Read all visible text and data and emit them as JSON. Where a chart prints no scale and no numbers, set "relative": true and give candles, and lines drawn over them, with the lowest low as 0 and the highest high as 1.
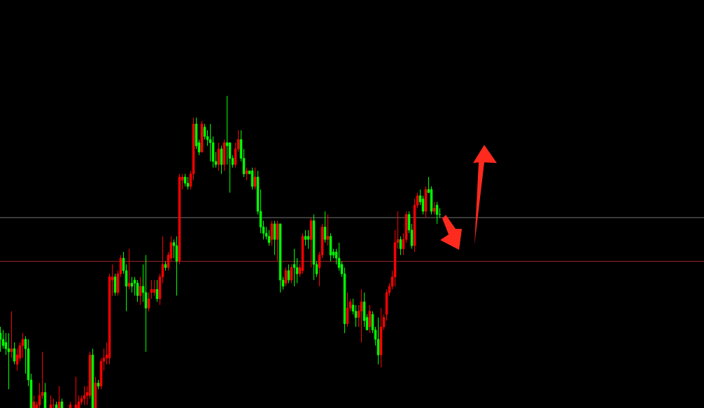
{
  "chart_data": {
    "type": "candlestick",
    "relative": true,
    "categories": [
      null,
      null,
      null,
      null,
      null,
      null,
      null,
      null,
      null,
      null,
      null,
      null,
      null,
      null,
      null,
      null,
      null,
      null,
      null,
      null,
      null,
      null,
      null,
      null,
      null,
      null,
      null,
      null,
      null,
      null,
      null,
      null,
      null,
      null,
      null,
      null,
      null,
      null,
      null,
      null,
      null,
      null,
      null,
      null,
      null,
      null,
      null,
      null,
      null,
      null,
      null,
      null,
      null,
      null,
      null,
      null,
      null,
      null,
      null,
      null,
      null,
      null,
      null,
      null,
      null,
      null,
      null,
      null,
      null,
      null,
      null,
      null,
      null,
      null,
      null,
      null,
      null,
      null,
      null,
      null,
      null,
      null,
      null,
      null,
      null,
      null,
      null,
      null,
      null,
      null,
      null,
      null,
      null,
      null,
      null,
      null,
      null,
      null,
      null,
      null,
      null,
      null,
      null,
      null,
      null,
      null,
      null,
      null,
      null,
      null,
      null,
      null,
      null,
      null,
      null,
      null,
      null,
      null,
      null,
      null,
      null,
      null,
      null,
      null,
      null,
      null,
      null,
      null,
      null,
      null,
      null,
      null,
      null,
      null,
      null,
      null,
      null,
      null,
      null,
      null,
      null,
      null,
      null,
      null,
      null,
      null,
      null,
      null,
      null,
      null,
      null,
      null,
      null,
      null,
      null,
      null,
      null,
      null
    ],
    "ohlc": [
      [
        0.24,
        0.26,
        0.18,
        0.22
      ],
      [
        0.22,
        0.25,
        0.19,
        0.2
      ],
      [
        0.21,
        0.24,
        0.17,
        0.19
      ],
      [
        0.19,
        0.24,
        0.06,
        0.18
      ],
      [
        0.18,
        0.31,
        0.16,
        0.19
      ],
      [
        0.19,
        0.21,
        0.14,
        0.15
      ],
      [
        0.14,
        0.19,
        0.12,
        0.17
      ],
      [
        0.16,
        0.21,
        0.15,
        0.2
      ],
      [
        0.2,
        0.24,
        0.16,
        0.22
      ],
      [
        0.22,
        0.23,
        0.11,
        0.19
      ],
      [
        0.19,
        0.22,
        0.07,
        0.09
      ],
      [
        0.09,
        0.11,
        0,
        0
      ],
      [
        0,
        0.04,
        0,
        0.02
      ],
      [
        0,
        0.02,
        0,
        0.01
      ],
      [
        0.01,
        0.08,
        0,
        0.04
      ],
      [
        0.04,
        0.18,
        0.03,
        0.05
      ],
      [
        0.05,
        0.08,
        0,
        0
      ],
      null,
      [
        0,
        0.04,
        0,
        0.01
      ],
      [
        0.01,
        0.03,
        0,
        0.01
      ],
      [
        0.01,
        0.02,
        0,
        0
      ],
      [
        0,
        0.07,
        0,
        0.02
      ],
      [
        0.02,
        0.03,
        0,
        0
      ],
      null,
      null,
      [
        0,
        0.02,
        0,
        0.01
      ],
      null,
      [
        0,
        0.1,
        0,
        0.01
      ],
      [
        0,
        0.04,
        0,
        0.02
      ],
      [
        0.02,
        0.04,
        0.01,
        0.03
      ],
      [
        0.03,
        0.07,
        0.01,
        0.04
      ],
      [
        0.04,
        0.07,
        0.01,
        0.05
      ],
      [
        0.04,
        0.18,
        0.03,
        0.17
      ],
      [
        0.17,
        0.19,
        0,
        0
      ],
      [
        0,
        0.1,
        0,
        0.08
      ],
      [
        0.08,
        0.09,
        0.06,
        0.07
      ],
      [
        0.07,
        0.16,
        0.06,
        0.15
      ],
      [
        0.15,
        0.19,
        0.12,
        0.16
      ],
      [
        0.16,
        0.21,
        0.14,
        0.17
      ],
      [
        0.16,
        0.43,
        0.14,
        0.42
      ],
      [
        0.41,
        0.46,
        0.36,
        0.42
      ],
      [
        0.42,
        0.43,
        0.36,
        0.37
      ],
      [
        0.37,
        0.44,
        0.36,
        0.43
      ],
      [
        0.43,
        0.49,
        0.42,
        0.48
      ],
      [
        0.48,
        0.5,
        0.43,
        0.44
      ],
      [
        0.44,
        0.46,
        0.31,
        0.39
      ],
      [
        0.39,
        0.51,
        0.38,
        0.4
      ],
      [
        0.4,
        0.42,
        0.37,
        0.39
      ],
      [
        0.41,
        0.42,
        0.36,
        0.4
      ],
      [
        0.4,
        0.41,
        0.34,
        0.36
      ],
      [
        0.36,
        0.42,
        0.33,
        0.39
      ],
      [
        0.39,
        0.46,
        0.34,
        0.37
      ],
      [
        0.37,
        0.49,
        0.18,
        0.32
      ],
      [
        0.32,
        0.37,
        0.31,
        0.35
      ],
      [
        0.37,
        0.41,
        0.35,
        0.38
      ],
      [
        0.37,
        0.41,
        0.36,
        0.38
      ],
      [
        0.38,
        0.41,
        0.34,
        0.35
      ],
      [
        0.35,
        0.43,
        0.33,
        0.42
      ],
      [
        0.42,
        0.55,
        0.4,
        0.46
      ],
      [
        0.46,
        0.47,
        0.44,
        0.45
      ],
      [
        0.45,
        0.5,
        0.44,
        0.49
      ],
      [
        0.48,
        0.55,
        0.47,
        0.53
      ],
      [
        0.53,
        0.54,
        0.48,
        0.52
      ],
      [
        0.52,
        0.55,
        0.36,
        0.47
      ],
      [
        0.47,
        0.75,
        0.46,
        0.74
      ],
      [
        0.73,
        0.75,
        0.7,
        0.74
      ],
      [
        0.74,
        0.75,
        0.71,
        0.72
      ],
      [
        0.72,
        0.74,
        0.7,
        0.71
      ],
      [
        0.71,
        0.76,
        0.7,
        0.75
      ],
      [
        0.75,
        0.93,
        0.73,
        0.91
      ],
      [
        0.91,
        0.93,
        0.83,
        0.84
      ],
      [
        0.85,
        0.86,
        0.81,
        0.82
      ],
      [
        0.82,
        0.92,
        0.82,
        0.91
      ],
      [
        0.9,
        0.91,
        0.86,
        0.87
      ],
      [
        0.87,
        0.89,
        0.84,
        0.86
      ],
      [
        0.86,
        0.91,
        0.79,
        0.85
      ],
      [
        0.85,
        0.87,
        0.77,
        0.79
      ],
      [
        0.79,
        0.82,
        0.77,
        0.78
      ],
      [
        0.78,
        0.85,
        0.76,
        0.83
      ],
      [
        0.83,
        0.84,
        0.75,
        0.78
      ],
      [
        0.78,
        0.86,
        0.76,
        0.85
      ],
      [
        0.85,
        1,
        0.78,
        0.84
      ],
      [
        0.85,
        0.85,
        0.69,
        0.8
      ],
      [
        0.8,
        0.81,
        0.77,
        0.78
      ],
      [
        0.78,
        0.85,
        0.77,
        0.83
      ],
      [
        0.83,
        0.89,
        0.82,
        0.86
      ],
      [
        0.86,
        0.89,
        0.79,
        0.8
      ],
      [
        0.8,
        0.83,
        0.74,
        0.75
      ],
      [
        0.75,
        0.77,
        0.73,
        0.76
      ],
      [
        0.76,
        0.76,
        0.75,
        0.75
      ],
      [
        0.76,
        0.77,
        0.7,
        0.71
      ],
      [
        0.71,
        0.77,
        0.7,
        0.74
      ],
      [
        0.74,
        0.76,
        0.62,
        0.63
      ],
      [
        0.63,
        0.7,
        0.56,
        0.58
      ],
      [
        0.58,
        0.6,
        0.54,
        0.56
      ],
      [
        0.56,
        0.58,
        0.54,
        0.55
      ],
      [
        0.55,
        0.57,
        0.52,
        0.53
      ],
      [
        0.54,
        0.6,
        0.52,
        0.59
      ],
      [
        0.59,
        0.6,
        0.49,
        0.54
      ],
      [
        0.54,
        0.6,
        0.47,
        0.59
      ],
      [
        0.59,
        0.59,
        0.37,
        0.41
      ],
      [
        0.41,
        0.42,
        0.38,
        0.39
      ],
      [
        0.4,
        0.45,
        0.39,
        0.44
      ],
      [
        0.44,
        0.46,
        0.4,
        0.41
      ],
      [
        0.41,
        0.46,
        0.4,
        0.45
      ],
      [
        0.46,
        0.51,
        0.39,
        0.45
      ],
      [
        0.45,
        0.48,
        0.4,
        0.43
      ],
      [
        0.43,
        0.46,
        0.42,
        0.45
      ],
      [
        0.44,
        0.56,
        0.43,
        0.55
      ],
      [
        0.55,
        0.57,
        0.52,
        0.54
      ],
      [
        0.55,
        0.57,
        0.51,
        0.54
      ],
      [
        0.54,
        0.61,
        0.45,
        0.6
      ],
      [
        0.6,
        0.62,
        0.41,
        0.46
      ],
      [
        0.46,
        0.47,
        0.42,
        0.43
      ],
      [
        0.45,
        0.5,
        0.39,
        0.49
      ],
      [
        0.49,
        0.59,
        0.48,
        0.58
      ],
      [
        0.58,
        0.63,
        0.53,
        0.54
      ],
      [
        0.54,
        0.62,
        0.52,
        0.55
      ],
      [
        0.55,
        0.56,
        0.47,
        0.49
      ],
      [
        0.5,
        0.51,
        0.48,
        0.49
      ],
      [
        0.5,
        0.51,
        0.46,
        0.48
      ],
      [
        0.48,
        0.53,
        0.44,
        0.45
      ],
      [
        0.46,
        0.47,
        0.42,
        0.43
      ],
      [
        0.43,
        0.45,
        0.24,
        0.27
      ],
      [
        0.27,
        0.37,
        0.26,
        0.32
      ],
      [
        0.32,
        0.35,
        0.31,
        0.34
      ],
      [
        0.33,
        0.35,
        0.3,
        0.31
      ],
      [
        0.31,
        0.33,
        0.26,
        0.29
      ],
      [
        0.29,
        0.33,
        0.26,
        0.31
      ],
      [
        0.31,
        0.38,
        0.21,
        0.34
      ],
      [
        0.34,
        0.37,
        0.26,
        0.28
      ],
      [
        0.29,
        0.3,
        0.25,
        0.25
      ],
      [
        0.26,
        0.33,
        0.24,
        0.31
      ],
      [
        0.3,
        0.31,
        0.24,
        0.25
      ],
      [
        0.25,
        0.26,
        0.2,
        0.22
      ],
      [
        0.22,
        0.29,
        0.14,
        0.17
      ],
      [
        0.17,
        0.32,
        0.13,
        0.26
      ],
      [
        0.26,
        0.3,
        0.25,
        0.29
      ],
      [
        0.3,
        0.38,
        0.28,
        0.37
      ],
      [
        0.37,
        0.4,
        0.36,
        0.39
      ],
      [
        0.39,
        0.44,
        0.38,
        0.42
      ],
      [
        0.42,
        0.57,
        0.39,
        0.53
      ],
      [
        0.53,
        0.63,
        0.51,
        0.54
      ],
      [
        0.54,
        0.55,
        0.49,
        0.51
      ],
      [
        0.51,
        0.56,
        0.49,
        0.54
      ],
      [
        0.54,
        0.63,
        0.53,
        0.62
      ],
      [
        0.62,
        0.63,
        0.56,
        0.57
      ],
      [
        0.57,
        0.59,
        0.51,
        0.52
      ],
      [
        0.52,
        0.67,
        0.5,
        0.65
      ],
      [
        0.65,
        0.69,
        0.64,
        0.68
      ],
      [
        0.68,
        0.7,
        0.65,
        0.66
      ],
      [
        0.67,
        0.68,
        0.62,
        0.63
      ],
      [
        0.63,
        0.71,
        0.61,
        0.7
      ],
      [
        0.7,
        0.74,
        0.69,
        0.69
      ],
      [
        0.7,
        0.71,
        0.62,
        0.63
      ],
      [
        0.63,
        0.66,
        0.62,
        0.64
      ],
      [
        0.65,
        0.66,
        0.59,
        0.62
      ],
      [
        0.62,
        0.64,
        0.61,
        0.62
      ]
    ],
    "colors": [
      "#00ff00",
      "#00ff00",
      "#00ff00",
      "#00ff00",
      "#ff0000",
      "#00ff00",
      "#ff0000",
      "#ff0000",
      "#ff0000",
      "#00ff00",
      "#00ff00",
      "#00ff00",
      "#ff0000",
      "#ff0000",
      "#ff0000",
      "#ff0000",
      "#00ff00",
      null,
      "#ff0000",
      "#ff0000",
      "#00ff00",
      "#ff0000",
      "#00ff00",
      null,
      null,
      "#ff0000",
      null,
      "#ff0000",
      "#ff0000",
      "#ff0000",
      "#ff0000",
      "#ff0000",
      "#ff0000",
      "#00ff00",
      "#ff0000",
      "#00ff00",
      "#ff0000",
      "#ff0000",
      "#ff0000",
      "#ff0000",
      "#ff0000",
      "#00ff00",
      "#ff0000",
      "#ff0000",
      "#00ff00",
      "#00ff00",
      "#ff0000",
      "#00ff00",
      "#00ff00",
      "#00ff00",
      "#ff0000",
      "#00ff00",
      "#00ff00",
      "#ff0000",
      "#ff0000",
      "#ff0000",
      "#00ff00",
      "#ff0000",
      "#ff0000",
      "#00ff00",
      "#ff0000",
      "#ff0000",
      "#00ff00",
      "#00ff00",
      "#ff0000",
      "#ff0000",
      "#00ff00",
      "#00ff00",
      "#ff0000",
      "#ff0000",
      "#00ff00",
      "#00ff00",
      "#ff0000",
      "#00ff00",
      "#00ff00",
      "#00ff00",
      "#00ff00",
      "#00ff00",
      "#ff0000",
      "#00ff00",
      "#ff0000",
      "#00ff00",
      "#00ff00",
      "#00ff00",
      "#ff0000",
      "#ff0000",
      "#00ff00",
      "#00ff00",
      "#ff0000",
      "#00ff00",
      "#00ff00",
      "#ff0000",
      "#00ff00",
      "#00ff00",
      "#00ff00",
      "#00ff00",
      "#00ff00",
      "#ff0000",
      "#00ff00",
      "#ff0000",
      "#00ff00",
      "#00ff00",
      "#ff0000",
      "#00ff00",
      "#ff0000",
      "#00ff00",
      "#00ff00",
      "#ff0000",
      "#ff0000",
      "#00ff00",
      "#00ff00",
      "#ff0000",
      "#00ff00",
      "#00ff00",
      "#ff0000",
      "#ff0000",
      "#00ff00",
      "#ff0000",
      "#00ff00",
      "#00ff00",
      "#00ff00",
      "#00ff00",
      "#00ff00",
      "#00ff00",
      "#ff0000",
      "#ff0000",
      "#00ff00",
      "#00ff00",
      "#ff0000",
      "#ff0000",
      "#00ff00",
      "#00ff00",
      "#ff0000",
      "#00ff00",
      "#00ff00",
      "#00ff00",
      "#ff0000",
      "#ff0000",
      "#ff0000",
      "#ff0000",
      "#ff0000",
      "#ff0000",
      "#ff0000",
      "#00ff00",
      "#ff0000",
      "#ff0000",
      "#00ff00",
      "#00ff00",
      "#ff0000",
      "#ff0000",
      "#00ff00",
      "#00ff00",
      "#ff0000",
      "#00ff00",
      "#00ff00",
      "#ff0000",
      "#00ff00",
      "#00ff00"
    ],
    "ref_lines": [
      {
        "axis": "y",
        "value": 0.61,
        "color": "#909090"
      },
      {
        "axis": "y",
        "value": 0.47,
        "color": "#c03030"
      }
    ]
  }
}
